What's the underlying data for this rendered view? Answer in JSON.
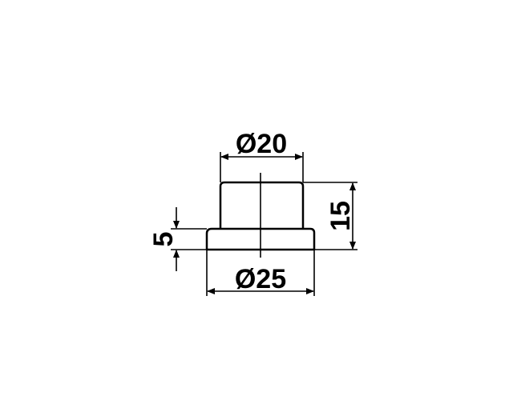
{
  "dimensions": {
    "top_diameter": "Ø20",
    "bottom_diameter": "Ø25",
    "total_height": "15",
    "flange_height": "5"
  }
}
